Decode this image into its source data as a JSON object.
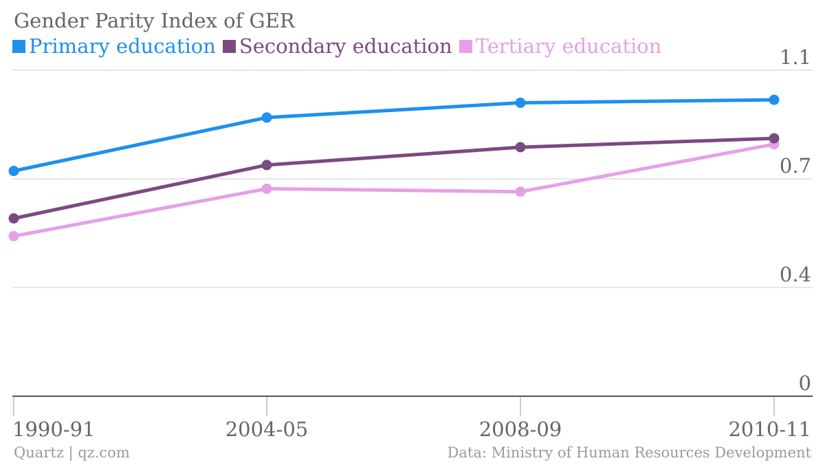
{
  "chart_data": {
    "type": "line",
    "title": "Gender Parity Index of GER",
    "categories": [
      "1990-91",
      "2004-05",
      "2008-09",
      "2010-11"
    ],
    "series": [
      {
        "name": "Primary education",
        "color": "#1f8ff0",
        "values": [
          0.76,
          0.94,
          0.99,
          1.0
        ]
      },
      {
        "name": "Secondary education",
        "color": "#7b4a80",
        "values": [
          0.6,
          0.78,
          0.84,
          0.87
        ]
      },
      {
        "name": "Tertiary education",
        "color": "#e6a0e8",
        "values": [
          0.54,
          0.7,
          0.69,
          0.85
        ]
      }
    ],
    "y_ticks": [
      "0",
      "0.4",
      "0.7",
      "1.1"
    ],
    "ylim": [
      0,
      1.1
    ],
    "grid": true,
    "legend_position": "top-left"
  },
  "footer": {
    "source_left": "Quartz | qz.com",
    "source_right": "Data: Ministry of Human Resources Development"
  }
}
